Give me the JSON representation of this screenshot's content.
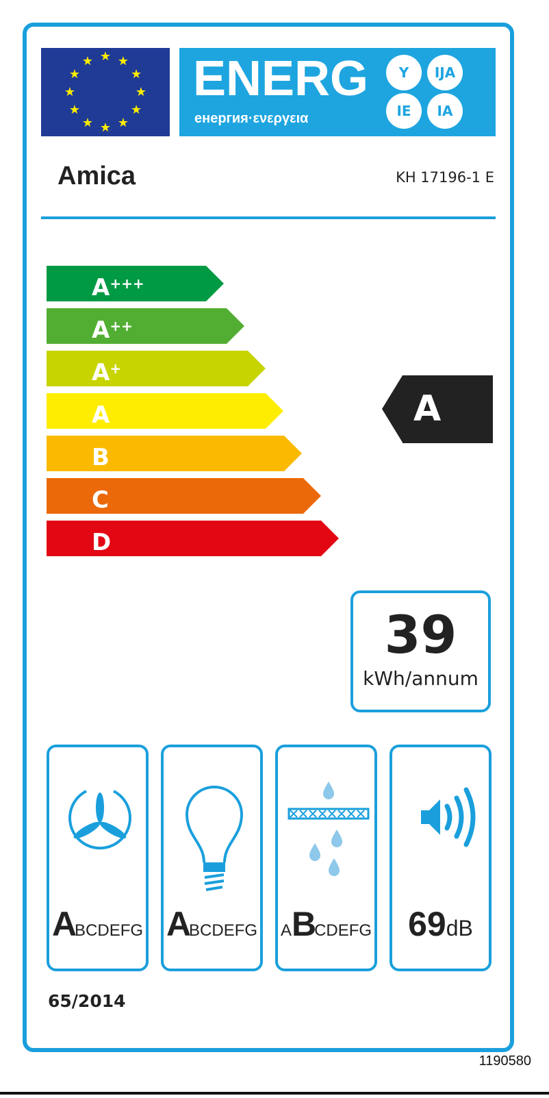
{
  "header": {
    "energ": "ENERG",
    "languages": "енергия·ενεργεια",
    "suffixes": [
      "Y",
      "IJA",
      "IE",
      "IA"
    ]
  },
  "supplier": "Amica",
  "model": "KH 17196-1 E",
  "scale": [
    {
      "letter": "A",
      "plus": "+++",
      "color": "#009a44"
    },
    {
      "letter": "A",
      "plus": "++",
      "color": "#52ae32"
    },
    {
      "letter": "A",
      "plus": "+",
      "color": "#c8d400"
    },
    {
      "letter": "A",
      "plus": "",
      "color": "#ffed00"
    },
    {
      "letter": "B",
      "plus": "",
      "color": "#fbba00"
    },
    {
      "letter": "C",
      "plus": "",
      "color": "#eb6909"
    },
    {
      "letter": "D",
      "plus": "",
      "color": "#e30613"
    }
  ],
  "rating": "A",
  "consumption": {
    "value": "39",
    "unit": "kWh/annum"
  },
  "pictograms": [
    {
      "icon": "fan-icon",
      "big": "A",
      "pre": "",
      "rest": "BCDEFG"
    },
    {
      "icon": "light-bulb-icon",
      "big": "A",
      "pre": "",
      "rest": "BCDEFG"
    },
    {
      "icon": "grease-filter-icon",
      "big": "B",
      "pre": "A",
      "rest": "CDEFG"
    },
    {
      "icon": "speaker-noise-icon",
      "big": "69",
      "pre": "",
      "rest": "dB"
    }
  ],
  "regulation": "65/2014",
  "label_code": "1190580",
  "colors": {
    "frame": "#1a9fdc",
    "energ": "#1ea5e0",
    "flag": "#1f3b96",
    "indicator": "#222222"
  }
}
